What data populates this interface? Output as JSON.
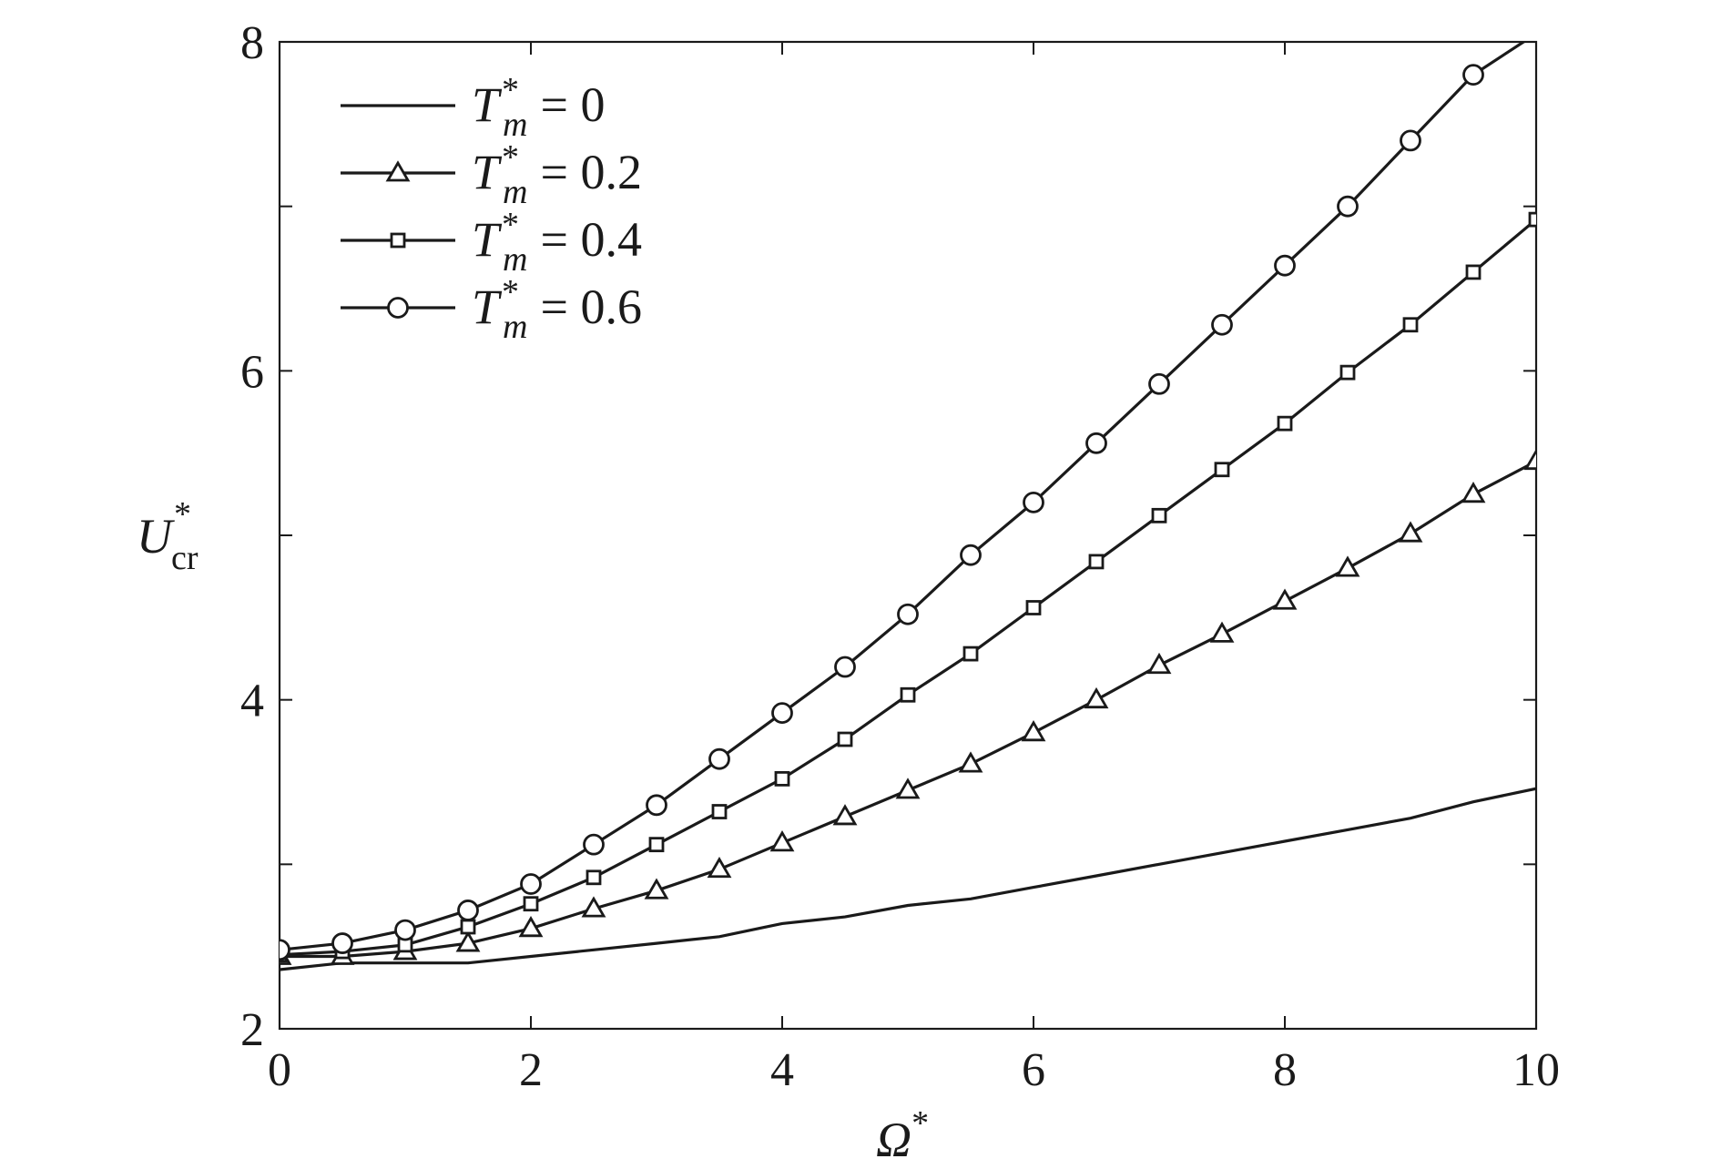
{
  "chart_data": {
    "type": "line",
    "xlabel": {
      "main": "Ω",
      "sup": "*"
    },
    "ylabel": {
      "main": "U",
      "sub": "cr",
      "sup": "*"
    },
    "xlim": [
      0,
      10
    ],
    "ylim": [
      2,
      8
    ],
    "x_ticks": [
      0,
      2,
      4,
      6,
      8,
      10
    ],
    "x_tick_labels": [
      "0",
      "2",
      "4",
      "6",
      "8",
      "10"
    ],
    "y_ticks": [
      2,
      3,
      4,
      5,
      6,
      7,
      8
    ],
    "y_tick_labels": [
      "2",
      "",
      "4",
      "",
      "6",
      "",
      "8"
    ],
    "grid": false,
    "legend_position": "top-left",
    "series": [
      {
        "legend": {
          "symbol": "T",
          "sub": "m",
          "sup": "*",
          "rest": " = 0"
        },
        "marker": "none",
        "x": [
          0,
          0.5,
          1,
          1.5,
          2,
          2.5,
          3,
          3.5,
          4,
          4.5,
          5,
          5.5,
          6,
          6.5,
          7,
          7.5,
          8,
          8.5,
          9,
          9.5,
          10
        ],
        "y": [
          2.36,
          2.4,
          2.4,
          2.4,
          2.44,
          2.48,
          2.52,
          2.56,
          2.64,
          2.68,
          2.75,
          2.79,
          2.86,
          2.93,
          3.0,
          3.07,
          3.14,
          3.21,
          3.28,
          3.38,
          3.46
        ]
      },
      {
        "legend": {
          "symbol": "T",
          "sub": "m",
          "sup": "*",
          "rest": " = 0.2"
        },
        "marker": "triangle",
        "x": [
          0,
          0.5,
          1,
          1.5,
          2,
          2.5,
          3,
          3.5,
          4,
          4.5,
          5,
          5.5,
          6,
          6.5,
          7,
          7.5,
          8,
          8.5,
          9,
          9.5,
          10
        ],
        "y": [
          2.44,
          2.44,
          2.47,
          2.52,
          2.61,
          2.73,
          2.84,
          2.97,
          3.13,
          3.29,
          3.45,
          3.61,
          3.8,
          4.0,
          4.21,
          4.4,
          4.6,
          4.8,
          5.01,
          5.25,
          5.45
        ]
      },
      {
        "legend": {
          "symbol": "T",
          "sub": "m",
          "sup": "*",
          "rest": " = 0.4"
        },
        "marker": "square",
        "x": [
          0,
          0.5,
          1,
          1.5,
          2,
          2.5,
          3,
          3.5,
          4,
          4.5,
          5,
          5.5,
          6,
          6.5,
          7,
          7.5,
          8,
          8.5,
          9,
          9.5,
          10
        ],
        "y": [
          2.45,
          2.47,
          2.51,
          2.62,
          2.76,
          2.92,
          3.12,
          3.32,
          3.52,
          3.76,
          4.03,
          4.28,
          4.56,
          4.84,
          5.12,
          5.4,
          5.68,
          5.99,
          6.28,
          6.6,
          6.92
        ]
      },
      {
        "legend": {
          "symbol": "T",
          "sub": "m",
          "sup": "*",
          "rest": " = 0.6"
        },
        "marker": "circle",
        "x": [
          0,
          0.5,
          1,
          1.5,
          2,
          2.5,
          3,
          3.5,
          4,
          4.5,
          5,
          5.5,
          6,
          6.5,
          7,
          7.5,
          8,
          8.5,
          9,
          9.5,
          10.3
        ],
        "y": [
          2.48,
          2.52,
          2.6,
          2.72,
          2.88,
          3.12,
          3.36,
          3.64,
          3.92,
          4.2,
          4.52,
          4.88,
          5.2,
          5.56,
          5.92,
          6.28,
          6.64,
          7.0,
          7.4,
          7.8,
          8.2
        ]
      }
    ]
  }
}
